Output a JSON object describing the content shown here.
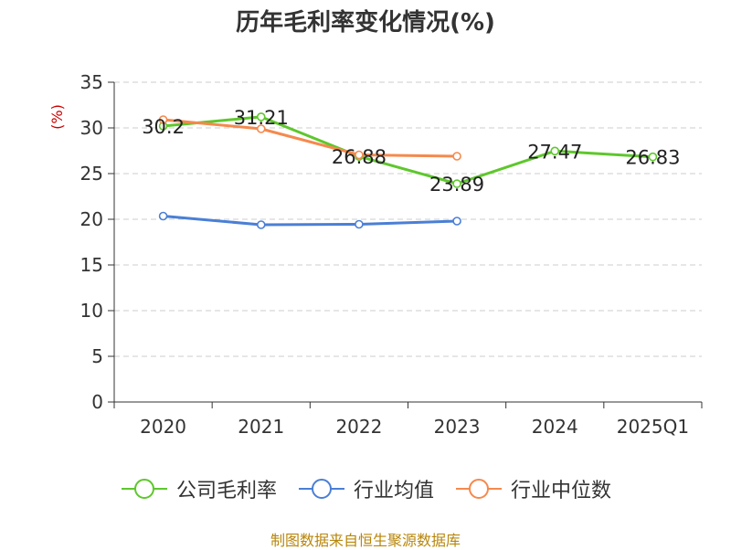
{
  "title": "历年毛利率变化情况(%)",
  "footer": "制图数据来自恒生聚源数据库",
  "chart_data": {
    "type": "line",
    "title": "历年毛利率变化情况(%)",
    "ylabel": "(%)",
    "xlabel": "",
    "categories": [
      "2020",
      "2021",
      "2022",
      "2023",
      "2024",
      "2025Q1"
    ],
    "ylim": [
      0,
      35
    ],
    "yticks": [
      0,
      5,
      10,
      15,
      20,
      25,
      30,
      35
    ],
    "grid": "horizontal-dashed",
    "legend_position": "bottom",
    "series": [
      {
        "name": "公司毛利率",
        "color": "#5ec72c",
        "values": [
          30.2,
          31.21,
          26.88,
          23.89,
          27.47,
          26.83
        ],
        "labels": [
          "30.2",
          "31.21",
          "26.88",
          "23.89",
          "27.47",
          "26.83"
        ]
      },
      {
        "name": "行业均值",
        "color": "#4a7fd6",
        "values": [
          20.35,
          19.4,
          19.45,
          19.8,
          null,
          null
        ]
      },
      {
        "name": "行业中位数",
        "color": "#f5894d",
        "values": [
          30.9,
          29.9,
          27.05,
          26.9,
          null,
          null
        ]
      }
    ]
  }
}
